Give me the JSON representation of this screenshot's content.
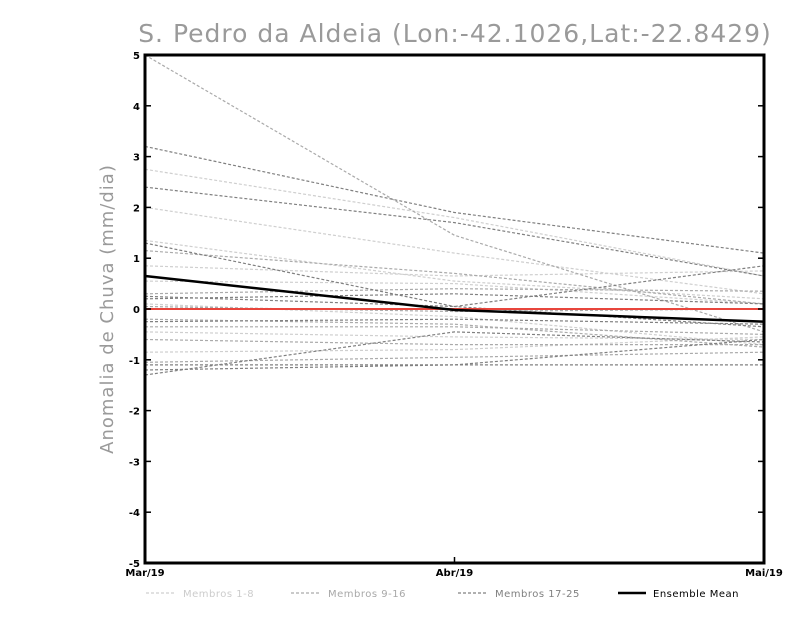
{
  "chart_data": {
    "type": "line",
    "title": "S. Pedro da Aldeia (Lon:-42.1026,Lat:-22.8429)",
    "xlabel": "",
    "ylabel": "Anomalia de Chuva (mm/dia)",
    "x": [
      "Mar/19",
      "Abr/19",
      "Mai/19"
    ],
    "ylim": [
      -5,
      5
    ],
    "yticks": [
      -5,
      -4,
      -3,
      -2,
      -1,
      0,
      1,
      2,
      3,
      4,
      5
    ],
    "reference_line": {
      "y": 0,
      "color": "#e8453c"
    },
    "groups": [
      {
        "name": "Membros 1-8",
        "color": "#cfcfcf",
        "style": "dashed",
        "series": [
          [
            2.75,
            1.8,
            0.65
          ],
          [
            2.0,
            1.1,
            0.3
          ],
          [
            1.35,
            0.55,
            0.2
          ],
          [
            0.85,
            0.65,
            0.75
          ],
          [
            0.1,
            -0.15,
            -0.7
          ],
          [
            -0.45,
            -0.55,
            -0.6
          ],
          [
            -0.85,
            -0.8,
            -0.55
          ],
          [
            0.55,
            0.5,
            0.1
          ]
        ]
      },
      {
        "name": "Membros 9-16",
        "color": "#aaaaaa",
        "style": "dashed",
        "series": [
          [
            5.0,
            1.45,
            -0.45
          ],
          [
            1.15,
            0.7,
            0.1
          ],
          [
            0.3,
            0.4,
            0.35
          ],
          [
            0.05,
            -0.05,
            0.0
          ],
          [
            -0.35,
            -0.35,
            -0.5
          ],
          [
            -0.6,
            -0.7,
            -0.7
          ],
          [
            -1.05,
            -0.95,
            -0.85
          ],
          [
            -0.2,
            -0.3,
            -0.75
          ]
        ]
      },
      {
        "name": "Membros 17-25",
        "color": "#808080",
        "style": "dashed",
        "series": [
          [
            3.2,
            1.9,
            1.1
          ],
          [
            2.4,
            1.7,
            0.65
          ],
          [
            1.3,
            0.05,
            -0.35
          ],
          [
            0.25,
            0.05,
            0.85
          ],
          [
            0.2,
            0.3,
            0.1
          ],
          [
            -0.25,
            -0.2,
            -0.3
          ],
          [
            -1.1,
            -1.1,
            -0.6
          ],
          [
            -1.2,
            -1.1,
            -1.1
          ],
          [
            -1.3,
            -0.45,
            -0.65
          ]
        ]
      }
    ],
    "ensemble_mean": {
      "name": "Ensemble Mean",
      "color": "#000000",
      "values": [
        0.65,
        -0.02,
        -0.25
      ]
    },
    "legend": [
      "Membros 1-8",
      "Membros 9-16",
      "Membros 17-25",
      "Ensemble Mean"
    ]
  }
}
